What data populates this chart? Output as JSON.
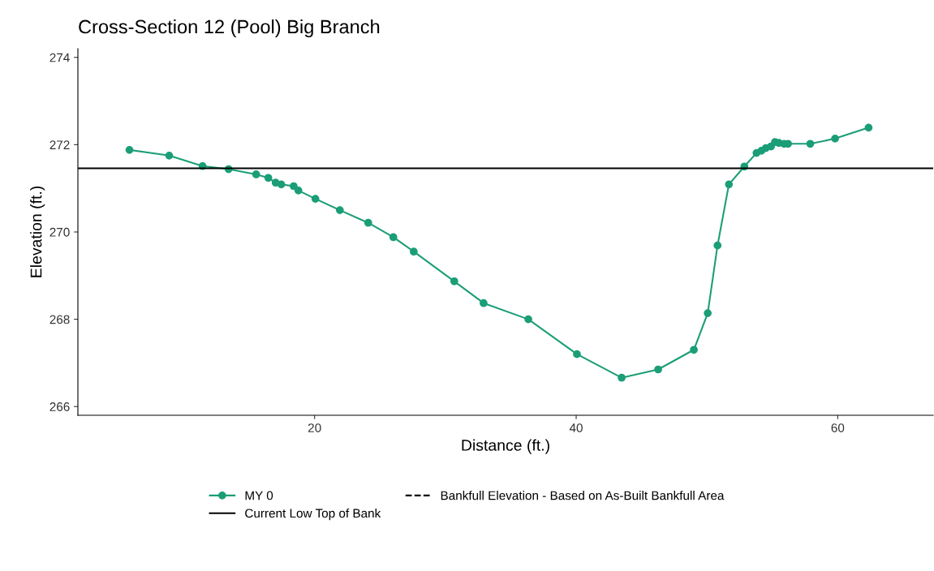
{
  "chart_data": {
    "type": "line",
    "title": "Cross-Section 12 (Pool) Big Branch",
    "xlabel": "Distance (ft.)",
    "ylabel": "Elevation (ft.)",
    "xlim": [
      1.9,
      67.3
    ],
    "ylim": [
      265.8,
      274.2
    ],
    "xticks": [
      20,
      40,
      60
    ],
    "yticks": [
      266,
      268,
      270,
      272,
      274
    ],
    "grid": false,
    "legend": "bottom",
    "marker": "circle",
    "series": [
      {
        "name": "MY 0",
        "color": "#1b9e77",
        "line_style": "solid",
        "x": [
          5.84,
          8.88,
          11.43,
          13.42,
          15.53,
          16.46,
          17.02,
          17.45,
          18.4,
          18.76,
          20.06,
          21.93,
          24.1,
          26.02,
          27.58,
          30.68,
          32.92,
          36.34,
          40.06,
          43.48,
          46.27,
          49.0,
          50.06,
          50.81,
          51.68,
          52.86,
          53.79,
          54.16,
          54.5,
          54.9,
          55.2,
          55.5,
          55.9,
          56.2,
          57.9,
          59.8,
          62.36
        ],
        "values": [
          271.88,
          271.75,
          271.51,
          271.44,
          271.32,
          271.24,
          271.13,
          271.09,
          271.05,
          270.95,
          270.76,
          270.5,
          270.21,
          269.88,
          269.55,
          268.87,
          268.37,
          268.0,
          267.2,
          266.66,
          266.85,
          267.3,
          268.14,
          269.69,
          271.09,
          271.5,
          271.81,
          271.86,
          271.92,
          271.96,
          272.06,
          272.04,
          272.02,
          272.02,
          272.02,
          272.14,
          272.39
        ]
      },
      {
        "name": "Bankfull Elevation - Based on As-Built Bankfull Area",
        "color": "#000000",
        "line_style": "dashed",
        "marker": "none"
      }
    ],
    "ref_lines": [
      {
        "axis": "y",
        "value": 271.46,
        "label": "Current Low Top of Bank",
        "color": "#000000",
        "line_style": "solid"
      }
    ]
  }
}
